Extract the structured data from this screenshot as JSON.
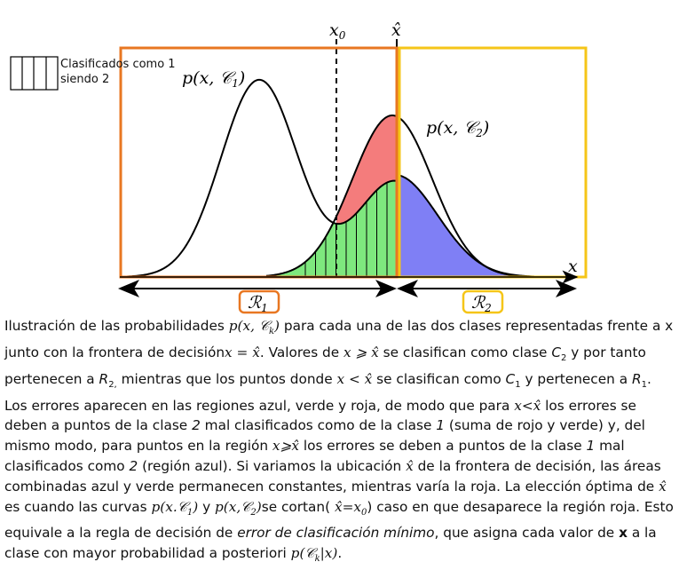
{
  "legend": {
    "line1": "Clasificados como 1",
    "line2": "siendo 2"
  },
  "labels": {
    "x0": "x",
    "x0_sub": "0",
    "xhat": "x̂",
    "p1": "p(x, 𝒞",
    "p1_sub": "1",
    "p1_close": ")",
    "p2": "p(x, 𝒞",
    "p2_sub": "2",
    "p2_close": ")",
    "x_axis": "x",
    "R1": "ℛ",
    "R1_sub": "1",
    "R2": "ℛ",
    "R2_sub": "2"
  },
  "colors": {
    "region1_box": "#E87722",
    "region2_box": "#F5C518",
    "red_area": "#F47C7C",
    "green_area": "#7EE87E",
    "blue_area": "#7F7FF5"
  },
  "caption": {
    "s01": "Ilustración de las probabilidades ",
    "m01": "p(x, 𝒞",
    "m01s": "k",
    "m01e": ")",
    "s02": " para cada una de las dos clases representadas frente a x junto con la frontera de decisión",
    "m02": "x = x̂",
    "s03": ". Valores de ",
    "m03": "x ⩾ x̂",
    "s04": " se clasifican como clase ",
    "m04": "C",
    "m04s": "2",
    "s05": " y por tanto pertenecen a ",
    "m05": "R",
    "m05s": "2,",
    "s06": " mientras que los puntos donde ",
    "m06": "x < x̂",
    "s07": " se clasifican como ",
    "m07": "C",
    "m07s": "1",
    "s08": " y pertenecen a ",
    "m08": "R",
    "m08s": "1",
    "s09": ". Los errores aparecen en las regiones azul, verde y roja, de modo que para ",
    "m09": "x<x̂",
    "s10": " los errores se deben a puntos de la clase ",
    "i10": "2",
    "s11": " mal clasificados como de la clase ",
    "i11": "1",
    "s12": " (suma de rojo y verde) y, del mismo modo, para puntos en la región ",
    "m12": "x⩾x̂",
    "s13": " los errores se deben a puntos de la clase ",
    "i13": "1",
    "s14": " mal clasificados como ",
    "i14": "2",
    "s15": " (región azul). Si variamos la ubicación ",
    "m15": "x̂",
    "s16": " de la frontera de decisión, las áreas combinadas azul y verde permanecen constantes, mientras varía la roja. La elección óptima de ",
    "m16": "x̂",
    "s17": " es cuando las curvas ",
    "m17": "p(x.𝒞",
    "m17s": "1",
    "m17e": ")",
    "s18": " y ",
    "m18": "p(x,𝒞",
    "m18s": "2",
    "m18e": ")",
    "s19": "se cortan( ",
    "m19": "x̂=x",
    "m19s": "0",
    "s20": ") caso  en que desaparece la región roja. Esto equivale a la regla de decisión de ",
    "i20": "error de clasificación mínimo",
    "s21": ", que asigna cada valor de ",
    "b21": "x",
    "s22": " a la clase con mayor probabilidad a posteriori ",
    "m22": "p(𝒞",
    "m22s": "k",
    "m22e": "|x)",
    "s23": "."
  }
}
